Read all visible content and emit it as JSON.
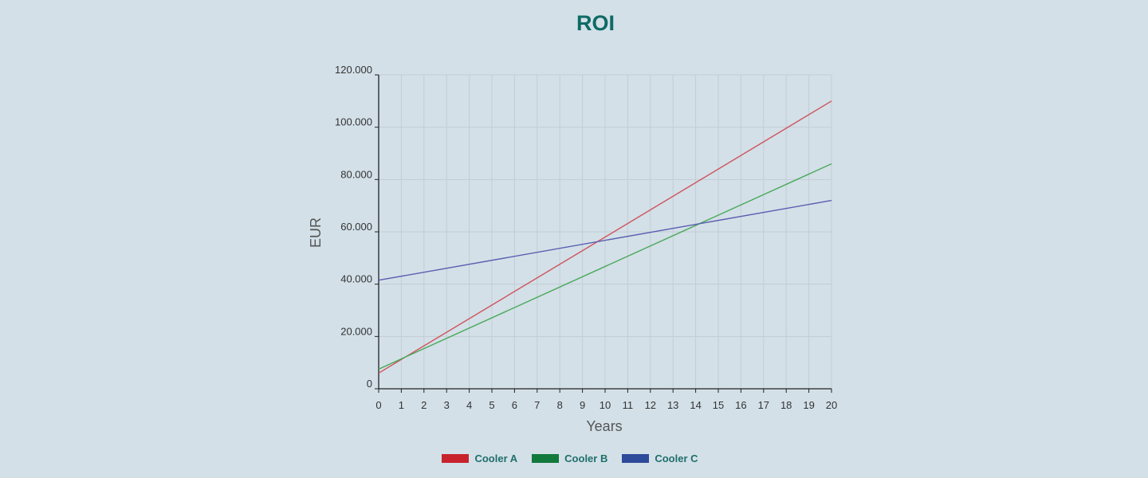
{
  "chart_data": {
    "type": "line",
    "title": "ROI",
    "xlabel": "Years",
    "ylabel": "EUR",
    "x": [
      0,
      20
    ],
    "xlim": [
      0,
      20
    ],
    "ylim": [
      0,
      120000
    ],
    "x_ticks": [
      "0",
      "1",
      "2",
      "3",
      "4",
      "5",
      "6",
      "7",
      "8",
      "9",
      "10",
      "11",
      "12",
      "13",
      "14",
      "15",
      "16",
      "17",
      "18",
      "19",
      "20"
    ],
    "y_ticks": [
      {
        "value": 0,
        "label": "0"
      },
      {
        "value": 20000,
        "label": "20.000"
      },
      {
        "value": 40000,
        "label": "40.000"
      },
      {
        "value": 60000,
        "label": "60.000"
      },
      {
        "value": 80000,
        "label": "80.000"
      },
      {
        "value": 100000,
        "label": "100.000"
      },
      {
        "value": 120000,
        "label": "120.000"
      }
    ],
    "grid": true,
    "legend_position": "bottom",
    "series": [
      {
        "name": "Cooler A",
        "color": "#d0525a",
        "legend_color": "#c8232c",
        "values": [
          6000,
          110000
        ]
      },
      {
        "name": "Cooler B",
        "color": "#4aa95a",
        "legend_color": "#127a3c",
        "values": [
          7500,
          86000
        ]
      },
      {
        "name": "Cooler C",
        "color": "#5a5fb0",
        "legend_color": "#2e4a9a",
        "values": [
          41500,
          72000
        ]
      }
    ]
  }
}
